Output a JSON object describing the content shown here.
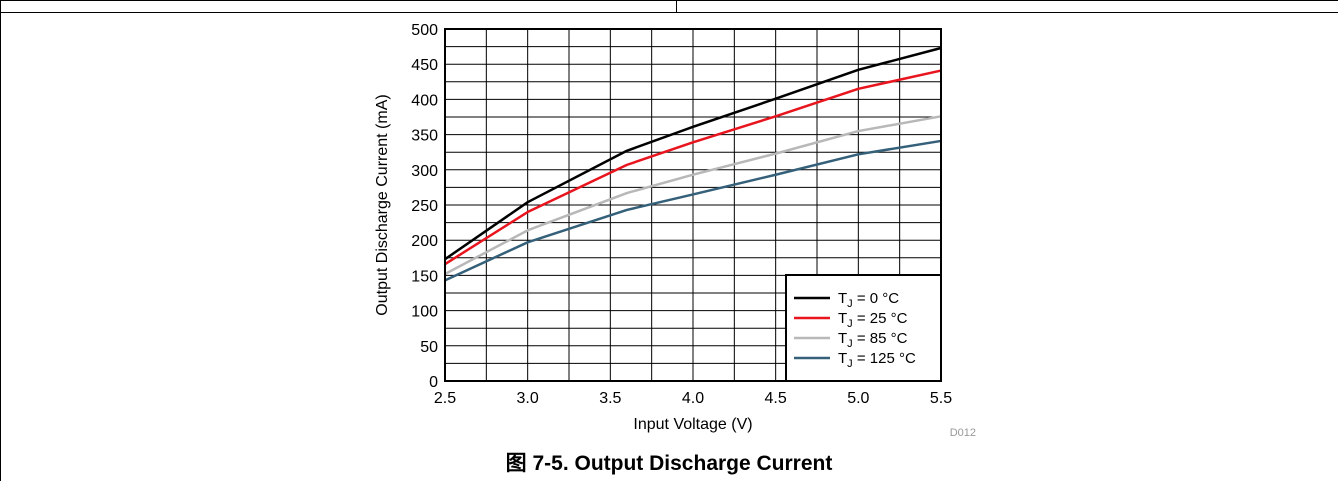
{
  "figure": {
    "caption_prefix": "图",
    "caption_text": "7-5. Output Discharge Current",
    "code": "D012"
  },
  "chart_data": {
    "type": "line",
    "title": "",
    "xlabel": "Input Voltage (V)",
    "ylabel": "Output Discharge Current (mA)",
    "xlim": [
      2.5,
      5.5
    ],
    "ylim": [
      0,
      500
    ],
    "xticks": [
      2.5,
      3.0,
      3.5,
      4.0,
      4.5,
      5.0,
      5.5
    ],
    "yticks": [
      0,
      50,
      100,
      150,
      200,
      250,
      300,
      350,
      400,
      450,
      500
    ],
    "x_tick_labels": [
      "2.5",
      "3.0",
      "3.5",
      "4.0",
      "4.5",
      "5.0",
      "5.5"
    ],
    "y_tick_labels": [
      "0",
      "50",
      "100",
      "150",
      "200",
      "250",
      "300",
      "350",
      "400",
      "450",
      "500"
    ],
    "x_minor_step": 0.25,
    "y_minor_step": 25,
    "grid": true,
    "legend_position": "bottom-right",
    "series": [
      {
        "name": "T_J = 0 °C",
        "name_main": "T",
        "name_sub": "J",
        "name_rest": " = 0 °C",
        "color": "#000000",
        "x": [
          2.5,
          3.0,
          3.6,
          4.0,
          4.5,
          5.0,
          5.5
        ],
        "y": [
          173,
          254,
          327,
          361,
          401,
          442,
          473
        ]
      },
      {
        "name": "T_J = 25 °C",
        "name_main": "T",
        "name_sub": "J",
        "name_rest": " = 25 °C",
        "color": "#e8141e",
        "x": [
          2.5,
          3.0,
          3.6,
          4.0,
          4.5,
          5.0,
          5.5
        ],
        "y": [
          166,
          240,
          307,
          339,
          376,
          415,
          441
        ]
      },
      {
        "name": "T_J = 85 °C",
        "name_main": "T",
        "name_sub": "J",
        "name_rest": " = 85 °C",
        "color": "#b8b8b8",
        "x": [
          2.5,
          3.0,
          3.6,
          4.0,
          4.5,
          5.0,
          5.5
        ],
        "y": [
          152,
          214,
          267,
          293,
          323,
          355,
          376
        ]
      },
      {
        "name": "T_J = 125 °C",
        "name_main": "T",
        "name_sub": "J",
        "name_rest": " = 125 °C",
        "color": "#35607a",
        "x": [
          2.5,
          3.0,
          3.6,
          4.0,
          4.5,
          5.0,
          5.5
        ],
        "y": [
          143,
          197,
          243,
          265,
          293,
          322,
          341
        ]
      }
    ]
  }
}
